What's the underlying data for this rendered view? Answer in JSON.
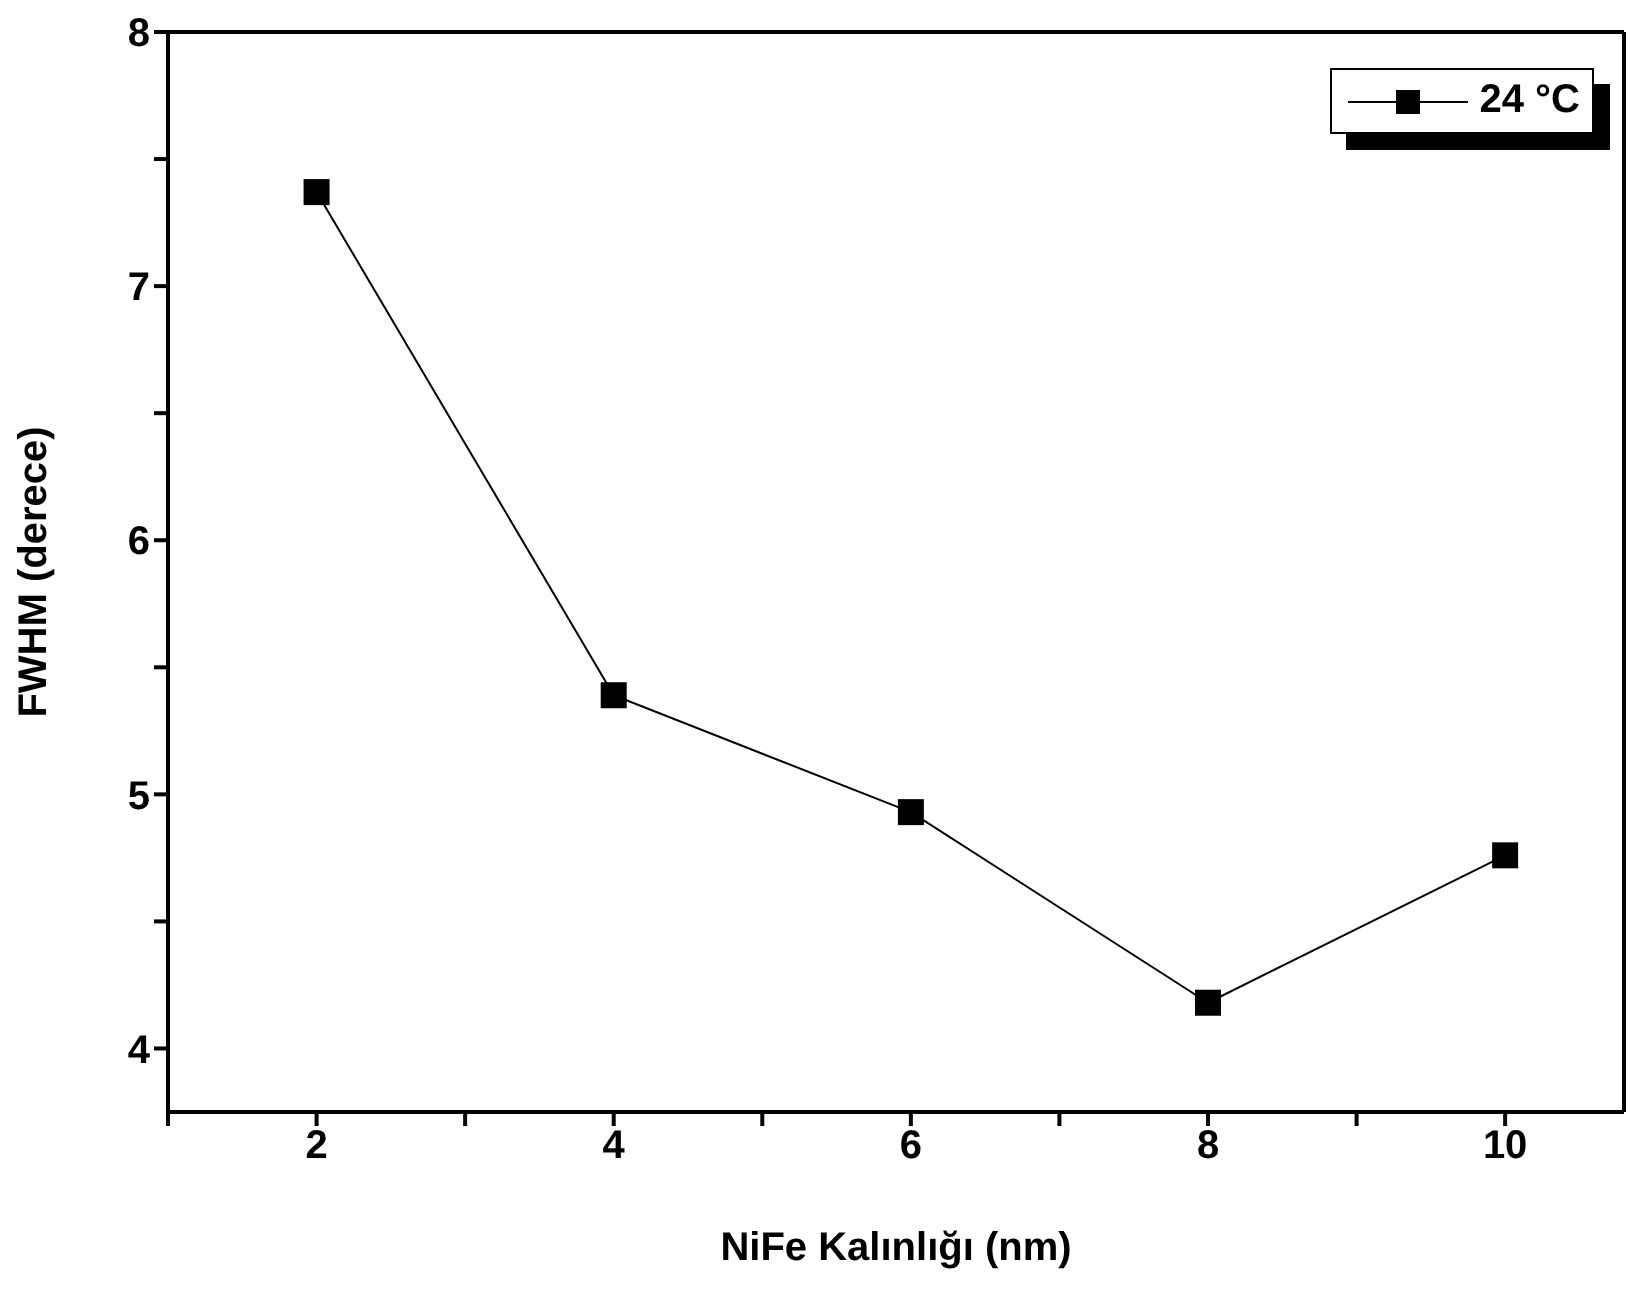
{
  "chart_data": {
    "type": "line",
    "xlabel": "NiFe Kalınlığı (nm)",
    "ylabel": "FWHM (derece)",
    "x": [
      2,
      4,
      6,
      8,
      10
    ],
    "series": [
      {
        "name": "24 °C",
        "color": "#000000",
        "values": [
          7.37,
          5.39,
          4.93,
          4.18,
          4.76
        ]
      }
    ],
    "xlim": [
      1,
      10.8
    ],
    "xticks": [
      {
        "value": 1,
        "label": null
      },
      2,
      {
        "value": 3,
        "label": null
      },
      4,
      {
        "value": 5,
        "label": null
      },
      6,
      {
        "value": 7,
        "label": null
      },
      8,
      {
        "value": 9,
        "label": null
      },
      10
    ],
    "ylim": [
      3.75,
      8
    ],
    "yticks": [
      4,
      {
        "value": 4.5,
        "label": null
      },
      5,
      {
        "value": 5.5,
        "label": null
      },
      6,
      {
        "value": 6.5,
        "label": null
      },
      7,
      {
        "value": 7.5,
        "label": null
      },
      8
    ],
    "marker": "square",
    "line_style": "solid",
    "legend": "top right",
    "grid": false
  }
}
